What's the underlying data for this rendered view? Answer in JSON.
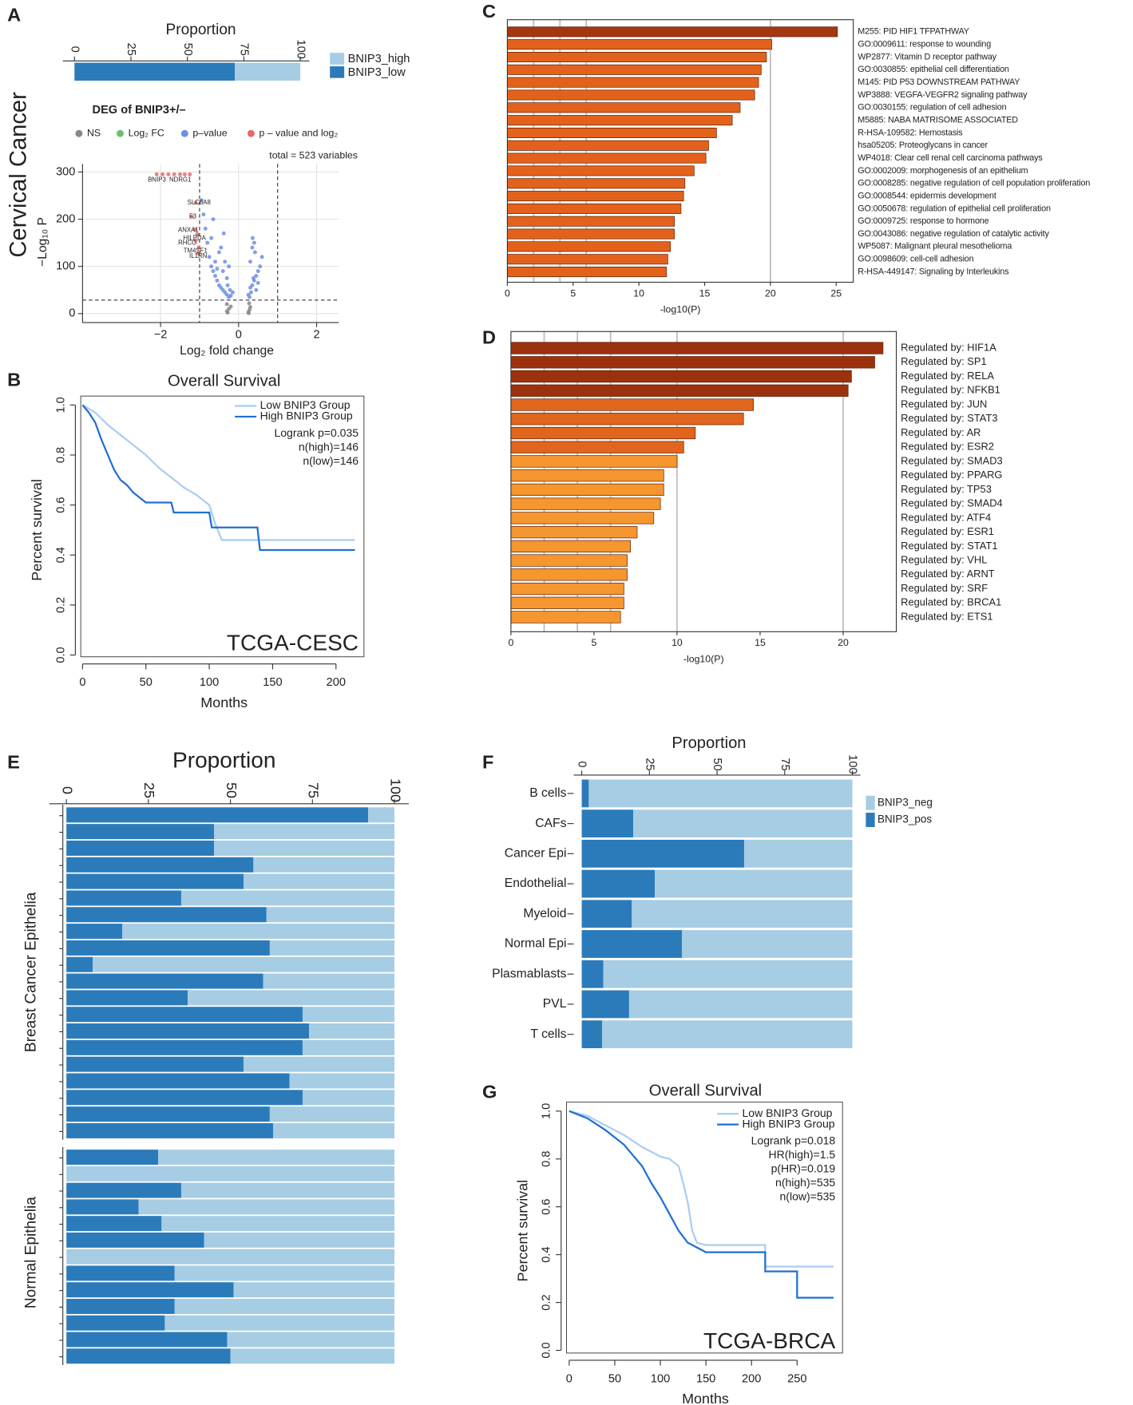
{
  "chart_data": [
    {
      "panel": "A",
      "side_label": "Cervical Cancer",
      "type": "barh",
      "stacked": true,
      "title": "Proportion",
      "series": [
        {
          "name": "BNIP3_low",
          "color": "#2b7bba",
          "values": [
            71
          ]
        },
        {
          "name": "BNIP3_high",
          "color": "#a6cde3",
          "values": [
            29
          ]
        }
      ],
      "xlim": [
        0,
        100
      ],
      "xticks": [
        0,
        25,
        50,
        75,
        100
      ]
    },
    {
      "type": "scatter",
      "title": "DEG of BNIP3+/–",
      "annotation": "total = 523 variables",
      "x_label": "Log₂ fold change",
      "y_label": "−Log₁₀ P",
      "gene_labels": [
        "BNIP3",
        "NDRG1",
        "SLC6A8",
        "F3",
        "ANXA1",
        "HILPDA",
        "RHCG",
        "TM4SF1",
        "IL1RN"
      ],
      "series": [
        {
          "name": "NS",
          "color": "#888888",
          "x": [
            -0.3,
            -0.25,
            -0.2,
            -0.3,
            -0.28,
            0.25,
            0.28,
            0.3,
            0.27,
            0.26
          ],
          "values": [
            5,
            10,
            15,
            20,
            2,
            3,
            8,
            14,
            22,
            1
          ]
        },
        {
          "name": "Log₂ FC",
          "color": "#6bbf6b",
          "x": [],
          "values": []
        },
        {
          "name": "p–value",
          "color": "#6f8fe0",
          "x": [
            -0.95,
            -0.9,
            -0.85,
            -0.8,
            -0.75,
            -0.7,
            -0.65,
            -0.6,
            -0.55,
            -0.5,
            -0.45,
            -0.4,
            -0.35,
            -0.3,
            -0.28,
            -0.25,
            -0.22,
            -0.2,
            -0.5,
            -0.6,
            -0.4,
            -0.3,
            -0.7,
            -0.35,
            -0.45,
            -0.25,
            -0.55,
            -0.15,
            -0.65,
            -0.38,
            0.25,
            0.3,
            0.35,
            0.4,
            0.45,
            0.5,
            0.55,
            0.6,
            0.3,
            0.35,
            0.4,
            0.28,
            0.32,
            0.45,
            0.5,
            0.38,
            0.42,
            0.36
          ],
          "values": [
            240,
            210,
            180,
            150,
            120,
            100,
            90,
            80,
            70,
            60,
            55,
            50,
            45,
            40,
            60,
            35,
            50,
            38,
            130,
            110,
            90,
            75,
            160,
            110,
            140,
            100,
            95,
            45,
            200,
            170,
            40,
            55,
            60,
            70,
            80,
            90,
            100,
            120,
            110,
            140,
            150,
            35,
            45,
            50,
            65,
            75,
            130,
            160
          ]
        },
        {
          "name": "p – value and log₂",
          "color": "#e86a6a",
          "x": [
            -2.1,
            -1.95,
            -1.8,
            -1.65,
            -1.5,
            -1.38,
            -1.25,
            -1.1,
            -1.2,
            -1.12,
            -1.06,
            -1.1,
            -1.02,
            -1.04
          ],
          "values": [
            295,
            295,
            295,
            295,
            295,
            295,
            295,
            235,
            205,
            178,
            168,
            155,
            140,
            128
          ]
        }
      ],
      "xlim": [
        -4,
        2.57
      ],
      "xticks": [
        {
          "value": -2,
          "label": "−2"
        },
        0,
        2
      ],
      "ylim": [
        -19,
        317
      ],
      "yticks": [
        0,
        100,
        200,
        300
      ],
      "vlines": [
        -1,
        1
      ],
      "hlines": [
        28.5
      ],
      "grid": true
    },
    {
      "panel": "B",
      "type": "line",
      "title": "Overall Survival",
      "x_label": "Months",
      "y_label": "Percent survival",
      "series": [
        {
          "name": "Low BNIP3 Group",
          "color": "#a9cdf5",
          "x": [
            0,
            10,
            20,
            30,
            40,
            50,
            60,
            70,
            80,
            90,
            100,
            105,
            110,
            215
          ],
          "values": [
            1,
            0.97,
            0.92,
            0.88,
            0.84,
            0.8,
            0.75,
            0.71,
            0.67,
            0.64,
            0.6,
            0.52,
            0.46,
            0.46
          ]
        },
        {
          "name": "High BNIP3 Group",
          "color": "#1f6fd6",
          "x": [
            0,
            5,
            10,
            15,
            20,
            25,
            30,
            35,
            40,
            45,
            50,
            70,
            72,
            100,
            102,
            138,
            140,
            215
          ],
          "values": [
            1,
            0.97,
            0.93,
            0.86,
            0.8,
            0.74,
            0.7,
            0.68,
            0.65,
            0.63,
            0.61,
            0.61,
            0.57,
            0.57,
            0.51,
            0.51,
            0.42,
            0.42
          ]
        }
      ],
      "annotations": [
        "Logrank p=0.035",
        "n(high)=146",
        "n(low)=146"
      ],
      "dataset_label": "TCGA-CESC",
      "xlim": [
        0,
        215
      ],
      "xticks": [
        0,
        50,
        100,
        150,
        200
      ],
      "ylim": [
        0,
        1
      ],
      "yticks": [
        {
          "value": 0,
          "label": "0.0"
        },
        0.2,
        0.4,
        0.6,
        0.8,
        {
          "value": 1,
          "label": "1.0"
        }
      ]
    },
    {
      "panel": "C",
      "type": "barh",
      "x_label": "-log10(P)",
      "categories": [
        "M255: PID HIF1 TFPATHWAY",
        "GO:0009611: response to wounding",
        "WP2877: Vitamin D receptor pathway",
        "GO:0030855: epithelial cell differentiation",
        "M145: PID P53 DOWNSTREAM PATHWAY",
        "WP3888: VEGFA-VEGFR2 signaling pathway",
        "GO:0030155: regulation of cell adhesion",
        "M5885: NABA MATRISOME ASSOCIATED",
        "R-HSA-109582: Hemostasis",
        "hsa05205: Proteoglycans in cancer",
        "WP4018: Clear cell renal cell carcinoma pathways",
        "GO:0002009: morphogenesis of an epithelium",
        "GO:0008285: negative regulation of cell population proliferation",
        "GO:0008544: epidermis development",
        "GO:0050678: regulation of epithelial cell proliferation",
        "GO:0009725: response to hormone",
        "GO:0043086: negative regulation of catalytic activity",
        "WP5087: Malignant pleural mesothelioma",
        "GO:0098609: cell-cell adhesion",
        "R-HSA-449147: Signaling by Interleukins"
      ],
      "values": [
        25.1,
        20.1,
        19.7,
        19.3,
        19.1,
        18.8,
        17.7,
        17.1,
        15.9,
        15.3,
        15.1,
        14.2,
        13.5,
        13.4,
        13.2,
        12.7,
        12.7,
        12.4,
        12.2,
        12.1
      ],
      "colors": [
        "#a3370f",
        "#e3621b",
        "#e3621b",
        "#e3621b",
        "#e3621b",
        "#e3621b",
        "#e3621b",
        "#e3621b",
        "#e3621b",
        "#e3621b",
        "#e3621b",
        "#e3621b",
        "#e3621b",
        "#e3621b",
        "#e3621b",
        "#e3621b",
        "#e3621b",
        "#e3621b",
        "#e3621b",
        "#e3621b"
      ],
      "xlim": [
        0,
        26.3
      ],
      "xticks": [
        0,
        5,
        10,
        15,
        20,
        25
      ],
      "reference_lines": [
        2,
        4,
        6,
        20
      ]
    },
    {
      "panel": "D",
      "type": "barh",
      "x_label": "-log10(P)",
      "categories": [
        "Regulated by: HIF1A",
        "Regulated by: SP1",
        "Regulated by: RELA",
        "Regulated by: NFKB1",
        "Regulated by: JUN",
        "Regulated by: STAT3",
        "Regulated by: AR",
        "Regulated by: ESR2",
        "Regulated by: SMAD3",
        "Regulated by: PPARG",
        "Regulated by: TP53",
        "Regulated by: SMAD4",
        "Regulated by: ATF4",
        "Regulated by: ESR1",
        "Regulated by: STAT1",
        "Regulated by: VHL",
        "Regulated by: ARNT",
        "Regulated by: SRF",
        "Regulated by: BRCA1",
        "Regulated by: ETS1"
      ],
      "values": [
        22.4,
        21.9,
        20.5,
        20.3,
        14.6,
        14.0,
        11.1,
        10.4,
        10.0,
        9.2,
        9.2,
        9.0,
        8.6,
        7.6,
        7.2,
        7.0,
        7.0,
        6.8,
        6.8,
        6.6
      ],
      "colors": [
        "#9c320d",
        "#9c320d",
        "#9c320d",
        "#9c320d",
        "#e0661d",
        "#e0661d",
        "#e0661d",
        "#e0661d",
        "#f6962f",
        "#f6962f",
        "#f6962f",
        "#f6962f",
        "#f6962f",
        "#f6962f",
        "#f6962f",
        "#f6962f",
        "#f6962f",
        "#f6962f",
        "#f6962f",
        "#f6962f"
      ],
      "xlim": [
        0,
        23.2
      ],
      "xticks": [
        0,
        5,
        10,
        15,
        20
      ],
      "reference_lines": [
        2,
        4,
        6,
        10,
        20
      ]
    },
    {
      "panel": "E",
      "type": "barh",
      "stacked": true,
      "title": "Proportion",
      "xlim": [
        0,
        100
      ],
      "xticks": [
        0,
        25,
        50,
        75,
        100
      ],
      "groups": [
        {
          "name": "Breast Cancer Epithelia",
          "series": [
            {
              "color": "#2b7bba",
              "values": [
                92,
                45,
                45,
                57,
                54,
                35,
                61,
                17,
                62,
                8,
                60,
                37,
                72,
                74,
                72,
                54,
                68,
                72,
                62,
                63
              ]
            },
            {
              "color": "#a6cde3",
              "values": [
                8,
                55,
                55,
                43,
                46,
                65,
                39,
                83,
                38,
                92,
                40,
                63,
                28,
                26,
                28,
                46,
                32,
                28,
                38,
                37
              ]
            }
          ]
        },
        {
          "name": "Normal Epithelia",
          "series": [
            {
              "color": "#2b7bba",
              "values": [
                28,
                0,
                35,
                22,
                29,
                42,
                0,
                33,
                51,
                33,
                30,
                49,
                50
              ]
            },
            {
              "color": "#a6cde3",
              "values": [
                72,
                100,
                65,
                78,
                71,
                58,
                100,
                67,
                49,
                67,
                70,
                51,
                50
              ]
            }
          ]
        }
      ]
    },
    {
      "panel": "F",
      "type": "barh",
      "stacked": true,
      "title": "Proportion",
      "categories": [
        "B cells",
        "CAFs",
        "Cancer Epi",
        "Endothelial",
        "Myeloid",
        "Normal Epi",
        "Plasmablasts",
        "PVL",
        "T cells"
      ],
      "series": [
        {
          "name": "BNIP3_pos",
          "color": "#2b7bba",
          "values": [
            2.6,
            19,
            60,
            27,
            18.5,
            37,
            8,
            17.5,
            7.5
          ]
        },
        {
          "name": "BNIP3_neg",
          "color": "#a6cde3",
          "values": [
            97.4,
            81,
            40,
            73,
            81.5,
            63,
            92,
            82.5,
            92.5
          ]
        }
      ],
      "xlim": [
        0,
        100
      ],
      "xticks": [
        0,
        25,
        50,
        75,
        100
      ]
    },
    {
      "panel": "G",
      "type": "line",
      "title": "Overall Survival",
      "x_label": "Months",
      "y_label": "Percent survival",
      "series": [
        {
          "name": "Low BNIP3 Group",
          "color": "#a9cdf5",
          "x": [
            0,
            20,
            40,
            60,
            80,
            100,
            110,
            120,
            125,
            130,
            135,
            140,
            150,
            215,
            215,
            290
          ],
          "values": [
            1,
            0.98,
            0.94,
            0.9,
            0.85,
            0.81,
            0.8,
            0.77,
            0.7,
            0.62,
            0.5,
            0.45,
            0.44,
            0.44,
            0.35,
            0.35
          ]
        },
        {
          "name": "High BNIP3 Group",
          "color": "#1f6fd6",
          "x": [
            0,
            20,
            40,
            60,
            80,
            90,
            100,
            110,
            120,
            130,
            140,
            150,
            215,
            215,
            250,
            250,
            290
          ],
          "values": [
            1,
            0.97,
            0.92,
            0.86,
            0.77,
            0.7,
            0.64,
            0.57,
            0.5,
            0.45,
            0.43,
            0.41,
            0.41,
            0.33,
            0.33,
            0.22,
            0.22
          ]
        }
      ],
      "annotations": [
        "Logrank p=0.018",
        "HR(high)=1.5",
        "p(HR)=0.019",
        "n(high)=535",
        "n(low)=535"
      ],
      "dataset_label": "TCGA-BRCA",
      "xlim": [
        0,
        290
      ],
      "xticks": [
        0,
        50,
        100,
        150,
        200,
        250
      ],
      "ylim": [
        0,
        1
      ],
      "yticks": [
        {
          "value": 0,
          "label": "0.0"
        },
        0.2,
        0.4,
        0.6,
        0.8,
        {
          "value": 1,
          "label": "1.0"
        }
      ]
    }
  ]
}
